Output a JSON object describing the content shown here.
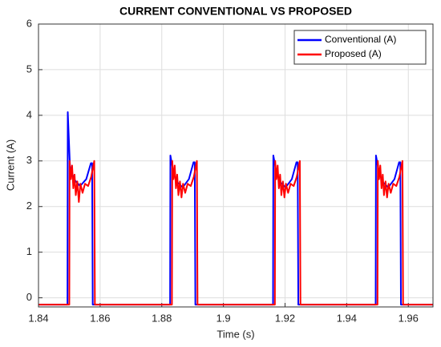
{
  "chart_data": {
    "type": "line",
    "title": "CURRENT CONVENTIONAL VS PROPOSED",
    "xlabel": "Time (s)",
    "ylabel": "Current (A)",
    "xlim": [
      1.84,
      1.968
    ],
    "xticks": [
      1.84,
      1.86,
      1.88,
      1.9,
      1.92,
      1.94,
      1.96
    ],
    "ylim": [
      -0.2,
      6
    ],
    "yticks": [
      0,
      1,
      2,
      3,
      4,
      5,
      6
    ],
    "grid": true,
    "legend": "upper right",
    "series": [
      {
        "name": "Conventional (A)",
        "color": "#0000ff",
        "x": [
          1.84,
          1.8494,
          1.8495,
          1.8502,
          1.8515,
          1.8535,
          1.8555,
          1.857,
          1.8574,
          1.8576,
          1.8827,
          1.8828,
          1.8835,
          1.8848,
          1.8868,
          1.8888,
          1.8903,
          1.8907,
          1.8909,
          1.9161,
          1.9162,
          1.9169,
          1.9182,
          1.9202,
          1.9222,
          1.9237,
          1.9241,
          1.9243,
          1.9494,
          1.9495,
          1.9502,
          1.9515,
          1.9535,
          1.9555,
          1.957,
          1.9574,
          1.9576,
          1.968
        ],
        "values": [
          -0.15,
          -0.15,
          4.07,
          2.9,
          2.6,
          2.45,
          2.6,
          2.95,
          2.95,
          -0.15,
          -0.15,
          3.12,
          2.85,
          2.55,
          2.42,
          2.6,
          2.97,
          2.97,
          -0.15,
          -0.15,
          3.12,
          2.85,
          2.55,
          2.42,
          2.6,
          2.97,
          2.97,
          -0.15,
          -0.15,
          3.12,
          2.85,
          2.55,
          2.42,
          2.6,
          2.97,
          2.97,
          -0.15,
          -0.15
        ]
      },
      {
        "name": "Proposed (A)",
        "color": "#ff0000",
        "x": [
          1.84,
          1.85,
          1.8501,
          1.8505,
          1.8509,
          1.8513,
          1.8517,
          1.8521,
          1.8526,
          1.8531,
          1.8536,
          1.8543,
          1.8551,
          1.8561,
          1.8571,
          1.8581,
          1.8583,
          1.8833,
          1.8834,
          1.8838,
          1.8842,
          1.8846,
          1.885,
          1.8854,
          1.8859,
          1.8864,
          1.8869,
          1.8876,
          1.8884,
          1.8894,
          1.8904,
          1.8914,
          1.8916,
          1.9167,
          1.9168,
          1.9172,
          1.9176,
          1.918,
          1.9184,
          1.9188,
          1.9193,
          1.9198,
          1.9203,
          1.921,
          1.9218,
          1.9228,
          1.9238,
          1.9248,
          1.925,
          1.95,
          1.9501,
          1.9505,
          1.9509,
          1.9513,
          1.9517,
          1.9521,
          1.9526,
          1.9531,
          1.9536,
          1.9543,
          1.9551,
          1.9561,
          1.9571,
          1.9581,
          1.9583,
          1.968
        ],
        "values": [
          -0.15,
          -0.15,
          3.0,
          2.6,
          2.9,
          2.4,
          2.7,
          2.25,
          2.55,
          2.1,
          2.5,
          2.3,
          2.5,
          2.45,
          2.65,
          3.0,
          -0.15,
          -0.15,
          3.0,
          2.6,
          2.9,
          2.4,
          2.7,
          2.25,
          2.55,
          2.2,
          2.5,
          2.3,
          2.5,
          2.45,
          2.65,
          3.0,
          -0.15,
          -0.15,
          3.0,
          2.6,
          2.9,
          2.4,
          2.7,
          2.25,
          2.55,
          2.2,
          2.5,
          2.3,
          2.5,
          2.45,
          2.65,
          3.0,
          -0.15,
          -0.15,
          3.0,
          2.6,
          2.9,
          2.4,
          2.7,
          2.25,
          2.55,
          2.2,
          2.5,
          2.3,
          2.5,
          2.45,
          2.65,
          3.0,
          -0.15,
          -0.15
        ]
      }
    ]
  }
}
